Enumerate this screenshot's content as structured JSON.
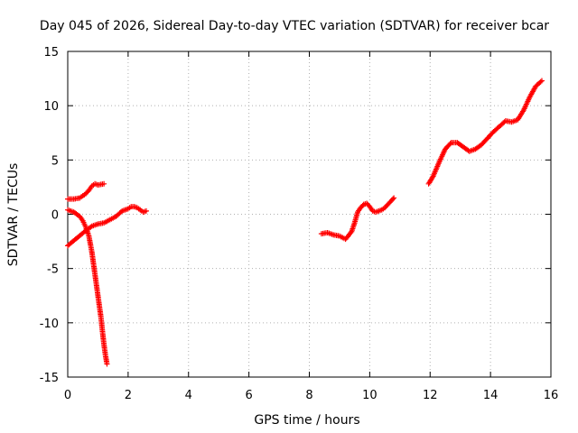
{
  "chart_data": {
    "type": "scatter",
    "title": "Day 045 of 2026, Sidereal Day-to-day VTEC variation (SDTVAR) for receiver bcar",
    "xlabel": "GPS time / hours",
    "ylabel": "SDTVAR / TECUs",
    "xlim": [
      0,
      16
    ],
    "ylim": [
      -15,
      15
    ],
    "xticks": [
      "0",
      "2",
      "4",
      "6",
      "8",
      "10",
      "12",
      "14",
      "16"
    ],
    "yticks": [
      "15",
      "10",
      "5",
      "0",
      "-5",
      "-10",
      "-15"
    ],
    "grid": true,
    "marker": "plus",
    "series_color": "#ff0000",
    "segments": [
      {
        "x": [
          0.0,
          0.2,
          0.4,
          0.5,
          0.6,
          0.7,
          0.8,
          0.9,
          1.0,
          1.2
        ],
        "y": [
          1.4,
          1.4,
          1.5,
          1.7,
          1.9,
          2.2,
          2.6,
          2.8,
          2.7,
          2.8
        ]
      },
      {
        "x": [
          0.0,
          0.3,
          0.6,
          0.8,
          1.0,
          1.2,
          1.4,
          1.6,
          1.8,
          2.0,
          2.1,
          2.2,
          2.3,
          2.4,
          2.5,
          2.6
        ],
        "y": [
          -2.9,
          -2.2,
          -1.5,
          -1.1,
          -0.9,
          -0.8,
          -0.5,
          -0.2,
          0.3,
          0.5,
          0.7,
          0.7,
          0.6,
          0.4,
          0.2,
          0.3
        ]
      },
      {
        "x": [
          0.0,
          0.2,
          0.4,
          0.5,
          0.6,
          0.7,
          0.8,
          0.9,
          1.0,
          1.1,
          1.15,
          1.2,
          1.25,
          1.3
        ],
        "y": [
          0.4,
          0.2,
          -0.2,
          -0.6,
          -1.2,
          -2.0,
          -3.5,
          -5.5,
          -7.5,
          -9.5,
          -10.8,
          -12.0,
          -13.0,
          -13.8
        ]
      },
      {
        "x": [
          8.4,
          8.6,
          8.8,
          9.0,
          9.2,
          9.4,
          9.5,
          9.6,
          9.7,
          9.8,
          9.9,
          10.0,
          10.1,
          10.2,
          10.3,
          10.4,
          10.5,
          10.6,
          10.7,
          10.8
        ],
        "y": [
          -1.8,
          -1.7,
          -1.9,
          -2.0,
          -2.3,
          -1.6,
          -0.8,
          0.2,
          0.6,
          0.9,
          1.0,
          0.7,
          0.3,
          0.2,
          0.3,
          0.4,
          0.6,
          0.9,
          1.2,
          1.5
        ]
      },
      {
        "x": [
          11.95,
          12.1,
          12.3,
          12.5,
          12.7,
          12.9,
          13.1,
          13.3,
          13.5,
          13.7,
          13.9,
          14.1,
          14.3,
          14.5,
          14.7,
          14.9,
          15.1,
          15.3,
          15.5,
          15.7
        ],
        "y": [
          2.8,
          3.5,
          4.8,
          6.0,
          6.6,
          6.6,
          6.2,
          5.8,
          6.0,
          6.4,
          7.0,
          7.6,
          8.1,
          8.6,
          8.5,
          8.7,
          9.6,
          10.8,
          11.8,
          12.3
        ]
      }
    ]
  }
}
